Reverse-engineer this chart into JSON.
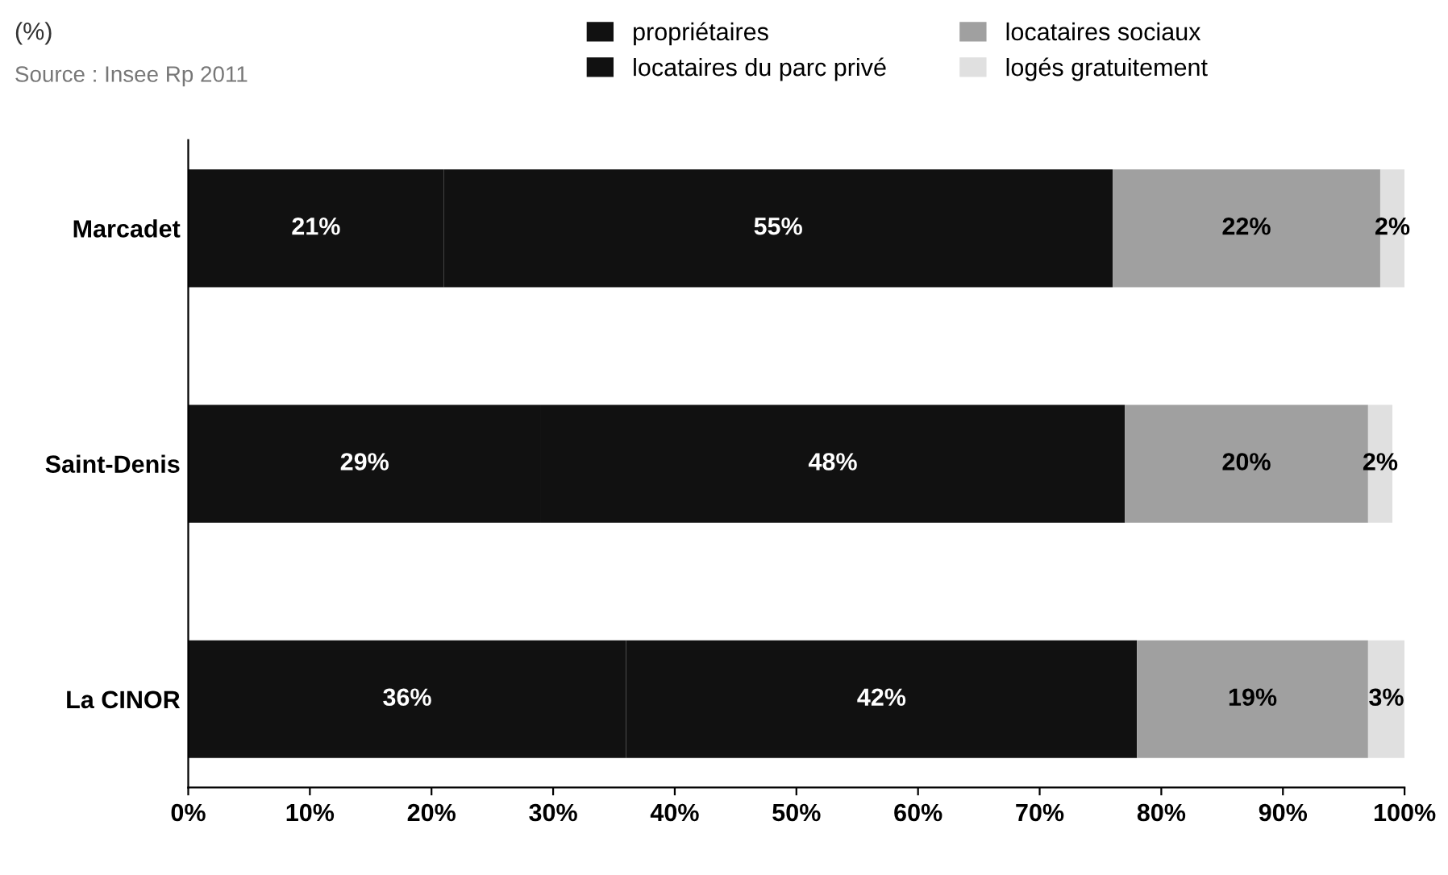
{
  "chart_data": {
    "type": "bar",
    "orientation": "horizontal",
    "stacked": true,
    "categories": [
      "Marcadet",
      "Saint-Denis",
      "La CINOR"
    ],
    "series": [
      {
        "name": "propriétaires",
        "color": "#111111",
        "values": [
          21,
          29,
          36
        ],
        "value_labels": [
          "21%",
          "29%",
          "36%"
        ]
      },
      {
        "name": "locataires du parc privé",
        "color": "#111111",
        "values": [
          55,
          48,
          42
        ],
        "value_labels": [
          "55%",
          "48%",
          "42%"
        ]
      },
      {
        "name": "locataires sociaux",
        "color": "#a0a0a0",
        "values": [
          22,
          20,
          19
        ],
        "value_labels": [
          "22%",
          "20%",
          "19%"
        ]
      },
      {
        "name": "logés gratuitement",
        "color": "#e0e0e0",
        "values": [
          2,
          2,
          3
        ],
        "value_labels": [
          "2%",
          "2%",
          "3%"
        ]
      }
    ],
    "xlim": [
      0,
      100
    ],
    "xticks": [
      {
        "value": 0,
        "label": "0%"
      },
      {
        "value": 10,
        "label": "10%"
      },
      {
        "value": 20,
        "label": "20%"
      },
      {
        "value": 30,
        "label": "30%"
      },
      {
        "value": 40,
        "label": "40%"
      },
      {
        "value": 50,
        "label": "50%"
      },
      {
        "value": 60,
        "label": "60%"
      },
      {
        "value": 70,
        "label": "70%"
      },
      {
        "value": 80,
        "label": "80%"
      },
      {
        "value": 90,
        "label": "90%"
      },
      {
        "value": 100,
        "label": "100%"
      }
    ],
    "grid": false,
    "legend": "top",
    "annotations": [
      "(%)",
      "Source : Insee Rp 2011"
    ]
  }
}
